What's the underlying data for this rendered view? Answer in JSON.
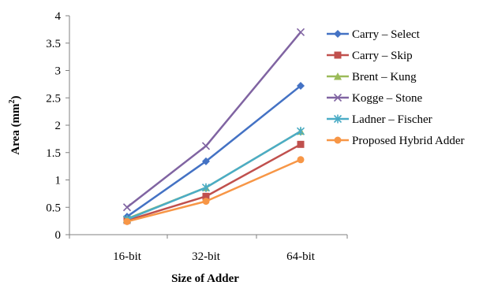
{
  "chart_data": {
    "type": "line",
    "categories": [
      "16-bit",
      "32-bit",
      "64-bit"
    ],
    "xlabel": "Size of Adder",
    "ylabel_main": "Area (mm",
    "ylabel_sup": "2",
    "ylabel_close": ")",
    "ylim": [
      0,
      4
    ],
    "yticks": [
      "0",
      "0.5",
      "1",
      "1.5",
      "2",
      "2.5",
      "3",
      "3.5",
      "4"
    ],
    "grid": false,
    "legend_position": "right",
    "series": [
      {
        "name": "Carry – Select",
        "values": [
          0.33,
          1.34,
          2.72
        ],
        "color": "#4472C4",
        "marker": "diamond"
      },
      {
        "name": "Carry – Skip",
        "values": [
          0.26,
          0.7,
          1.65
        ],
        "color": "#C0504D",
        "marker": "square"
      },
      {
        "name": "Brent – Kung",
        "values": [
          0.29,
          0.86,
          1.89
        ],
        "color": "#9BBB59",
        "marker": "triangle"
      },
      {
        "name": "Kogge – Stone",
        "values": [
          0.5,
          1.62,
          3.7
        ],
        "color": "#8064A2",
        "marker": "x"
      },
      {
        "name": "Ladner – Fischer",
        "values": [
          0.28,
          0.86,
          1.89
        ],
        "color": "#4BACC6",
        "marker": "star"
      },
      {
        "name": "Proposed Hybrid Adder",
        "values": [
          0.24,
          0.61,
          1.37
        ],
        "color": "#F79646",
        "marker": "circle"
      }
    ]
  }
}
